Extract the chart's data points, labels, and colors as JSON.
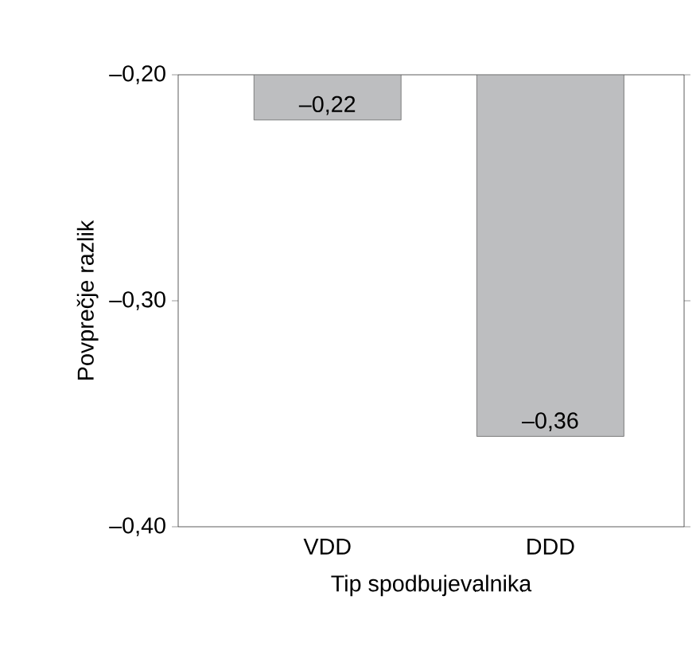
{
  "chart_data": {
    "type": "bar",
    "xlabel": "Tip spodbujevalnika",
    "ylabel": "Povprečje razlik",
    "categories": [
      "VDD",
      "DDD"
    ],
    "values": [
      -0.22,
      -0.36
    ],
    "value_labels": [
      "–0,22",
      "–0,36"
    ],
    "color": "#bdbec0",
    "ylim": [
      -0.4,
      -0.2
    ],
    "yticks": [
      {
        "value": -0.4,
        "label": "–0,40"
      },
      {
        "value": -0.3,
        "label": "–0,30"
      },
      {
        "value": -0.2,
        "label": "–0,20"
      }
    ],
    "grid": false
  }
}
